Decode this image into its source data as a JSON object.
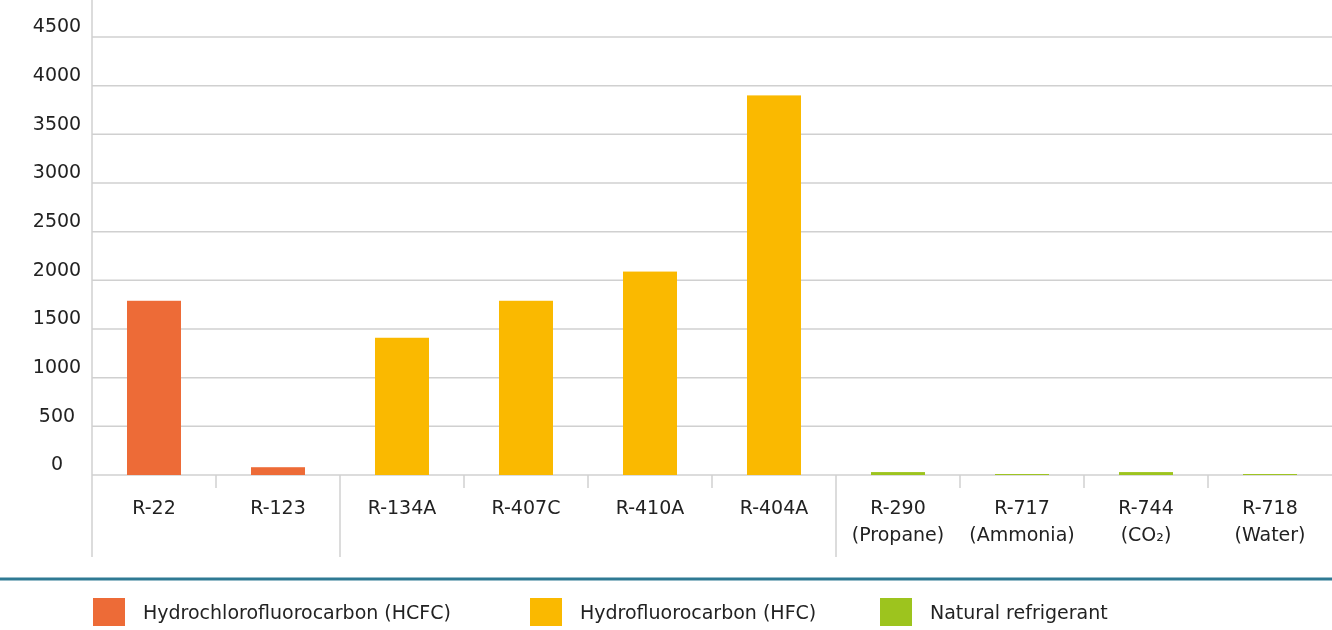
{
  "chart_data": {
    "type": "bar",
    "categories": [
      "R-22",
      "R-123",
      "R-134A",
      "R-407C",
      "R-410A",
      "R-404A",
      "R-290 (Propane)",
      "R-717 (Ammonia)",
      "R-744 (CO₂)",
      "R-718 (Water)"
    ],
    "series": [
      {
        "name": "Hydrochlorofluorocarbon (HCFC)",
        "color": "#ed6b37",
        "values": [
          1790,
          80,
          null,
          null,
          null,
          null,
          null,
          null,
          null,
          null
        ]
      },
      {
        "name": "Hydrofluorocarbon (HFC)",
        "color": "#fab900",
        "values": [
          null,
          null,
          1410,
          1790,
          2090,
          3900,
          null,
          null,
          null,
          null
        ]
      },
      {
        "name": "Natural refrigerant",
        "color": "#9dc41e",
        "values": [
          null,
          null,
          null,
          null,
          null,
          null,
          30,
          10,
          30,
          10
        ]
      }
    ],
    "ylim": [
      0,
      4500
    ],
    "yticks": [
      0,
      500,
      1000,
      1500,
      2000,
      2500,
      3000,
      3500,
      4000,
      4500
    ],
    "grid": "y",
    "legend": "bottom"
  }
}
